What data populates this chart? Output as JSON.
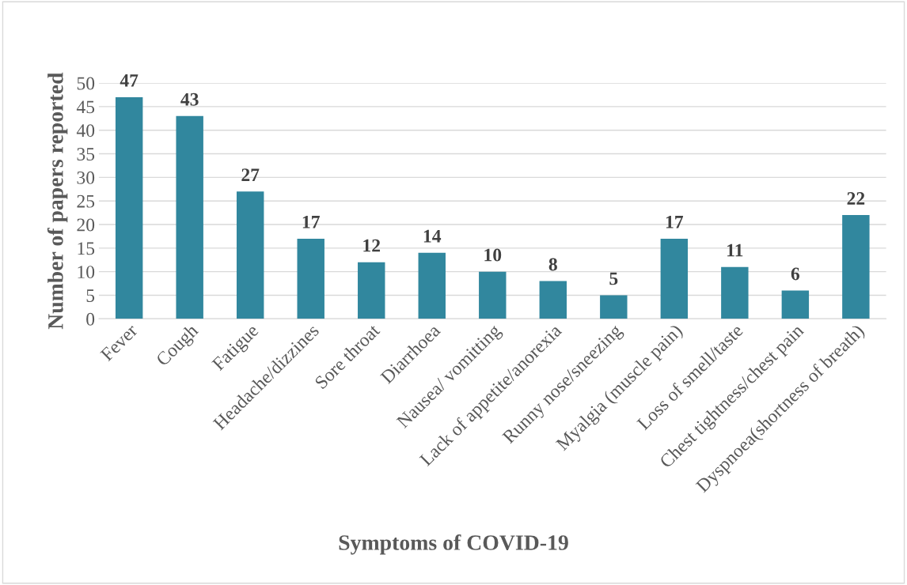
{
  "chart_data": {
    "type": "bar",
    "xlabel": "Symptoms of COVID-19",
    "ylabel": "Number of papers reported",
    "categories": [
      "Fever",
      "Cough",
      "Fatigue",
      "Headache/dizzines",
      "Sore throat",
      "Diarrhoea",
      "Nausea/ vomitting",
      "Lack of appetite/anorexia",
      "Runny nose/sneezing",
      "Myalgia (muscle pain)",
      "Loss of smell/taste",
      "Chest tightness/chest pain",
      "Dyspnoea(shortness of breath)"
    ],
    "values": [
      47,
      43,
      27,
      17,
      12,
      14,
      10,
      8,
      5,
      17,
      11,
      6,
      22
    ],
    "color": "#31879e",
    "ylim": [
      0,
      50
    ],
    "yticks": [
      0,
      5,
      10,
      15,
      20,
      25,
      30,
      35,
      40,
      45,
      50
    ],
    "grid": "y",
    "data_labels": true
  }
}
